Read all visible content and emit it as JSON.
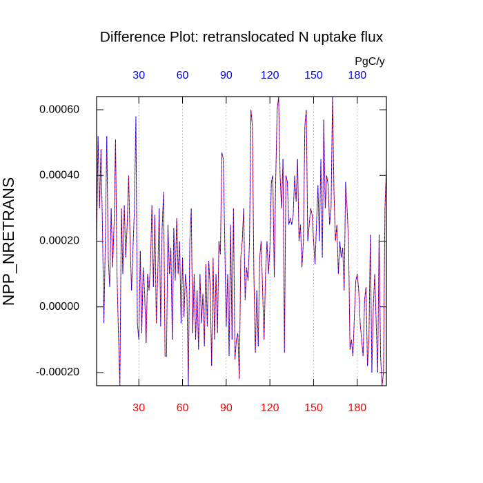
{
  "chart_data": {
    "type": "line",
    "title": "Difference Plot: retranslocated N uptake flux",
    "ylabel": "NPP_NRETRANS",
    "units": "PgC/y",
    "x": [
      1,
      2,
      3,
      4,
      5,
      6,
      7,
      8,
      9,
      10,
      11,
      12,
      13,
      14,
      15,
      16,
      17,
      18,
      19,
      20,
      21,
      22,
      23,
      24,
      25,
      26,
      27,
      28,
      29,
      30,
      31,
      32,
      33,
      34,
      35,
      36,
      37,
      38,
      39,
      40,
      41,
      42,
      43,
      44,
      45,
      46,
      47,
      48,
      49,
      50,
      51,
      52,
      53,
      54,
      55,
      56,
      57,
      58,
      59,
      60,
      61,
      62,
      63,
      64,
      65,
      66,
      67,
      68,
      69,
      70,
      71,
      72,
      73,
      74,
      75,
      76,
      77,
      78,
      79,
      80,
      81,
      82,
      83,
      84,
      85,
      86,
      87,
      88,
      89,
      90,
      91,
      92,
      93,
      94,
      95,
      96,
      97,
      98,
      99,
      100,
      101,
      102,
      103,
      104,
      105,
      106,
      107,
      108,
      109,
      110,
      111,
      112,
      113,
      114,
      115,
      116,
      117,
      118,
      119,
      120,
      121,
      122,
      123,
      124,
      125,
      126,
      127,
      128,
      129,
      130,
      131,
      132,
      133,
      134,
      135,
      136,
      137,
      138,
      139,
      140,
      141,
      142,
      143,
      144,
      145,
      146,
      147,
      148,
      149,
      150,
      151,
      152,
      153,
      154,
      155,
      156,
      157,
      158,
      159,
      160,
      161,
      162,
      163,
      164,
      165,
      166,
      167,
      168,
      169,
      170,
      171,
      172,
      173,
      174,
      175,
      176,
      177,
      178,
      179,
      180,
      181,
      182,
      183,
      184,
      185,
      186,
      187,
      188,
      189,
      190,
      191,
      192,
      193,
      194,
      195,
      196,
      197,
      198,
      199,
      200
    ],
    "series": [
      {
        "color": "#ff0000",
        "values": [
          0.0002,
          0.00052,
          0.0003,
          0.00048,
          0.00025,
          -5e-05,
          0.0002,
          0.00052,
          0.00015,
          6e-05,
          0.0003,
          0.00012,
          0.00025,
          0.00051,
          0.0001,
          -8e-05,
          -0.00024,
          0.0003,
          0.0001,
          0.00031,
          0.00015,
          0.00025,
          0.0004,
          0.0002,
          5e-05,
          0.00018,
          0.0003,
          0.00058,
          -5e-05,
          -0.0001,
          0.00017,
          -8e-05,
          0.00012,
          4e-05,
          -0.00011,
          0.0001,
          5e-05,
          0.00013,
          0.00031,
          6e-05,
          0.00028,
          -5e-05,
          0.0001,
          0.0003,
          -6e-05,
          0.00024,
          0.00035,
          -0.00015,
          -0.00015,
          0.00025,
          0.0001,
          0.00018,
          -0.0001,
          0.00024,
          8e-05,
          0.00027,
          0.0001,
          0.0002,
          -5e-05,
          0.00015,
          -3e-05,
          0.0001,
          5e-05,
          -0.00024,
          0.0002,
          0.0003,
          -8e-05,
          0.0001,
          -0.0001,
          5e-05,
          -0.00013,
          0.0001,
          -5e-05,
          4e-05,
          -0.00012,
          0.00013,
          -6e-05,
          0.00014,
          6e-05,
          -0.00018,
          0.00015,
          -0.0001,
          0.0001,
          -8e-05,
          0.0002,
          0.00016,
          0.00047,
          0.00045,
          0.0002,
          -6e-05,
          0.0001,
          -0.00015,
          0.00025,
          -0.0001,
          0.0003,
          -0.00016,
          -0.0001,
          -8e-05,
          -0.00022,
          0.00015,
          0.0002,
          0.0003,
          2e-05,
          0.00012,
          8e-05,
          0.0002,
          0.0006,
          0.00055,
          0.0001,
          -0.00014,
          5e-05,
          -0.00012,
          0.00015,
          0.0002,
          5e-05,
          -0.0001,
          0.0001,
          0.0002,
          0.0001,
          0.00018,
          0.00038,
          0.0004,
          9e-05,
          0.00039,
          0.0006,
          0.00064,
          0.0004,
          0.0003,
          0.00045,
          -0.00014,
          0.0004,
          0.00038,
          0.00025,
          0.00027,
          0.00025,
          0.00028,
          0.0004,
          0.00032,
          0.00045,
          0.0002,
          0.00025,
          0.00012,
          0.0002,
          0.00055,
          0.0006,
          0.0002,
          0.00025,
          0.0003,
          0.00028,
          0.0002,
          0.00013,
          0.00025,
          0.00037,
          0.0002,
          0.00045,
          0.00015,
          0.00057,
          0.0003,
          0.0004,
          0.00037,
          0.00025,
          0.0003,
          0.00064,
          0.00035,
          0.0002,
          0.00025,
          0.0001,
          0.0002,
          0.00015,
          0.00018,
          5e-05,
          0.00038,
          0.0003,
          0.0002,
          -0.00013,
          -0.0001,
          -0.00015,
          -3e-05,
          8e-05,
          0.0001,
          5e-05,
          -5e-05,
          -0.0001,
          -0.00015,
          2e-05,
          6e-05,
          -0.00018,
          -0.0001,
          0.00022,
          -0.0002,
          0,
          0.0001,
          -5e-05,
          -0.0002,
          0.00022,
          -0.00015,
          -0.00024,
          -0.0002,
          0.0003,
          0.00042
        ]
      },
      {
        "color": "#0000ff",
        "values": [
          0.0002,
          0.00052,
          0.0003,
          0.00048,
          0.00025,
          -5e-05,
          0.0002,
          0.00052,
          0.00015,
          6e-05,
          0.0003,
          0.00012,
          0.00025,
          0.00051,
          0.0001,
          -8e-05,
          -0.00024,
          0.0003,
          0.0001,
          0.00031,
          0.00015,
          0.00025,
          0.0004,
          0.0002,
          5e-05,
          0.00018,
          0.0003,
          0.00058,
          -5e-05,
          -0.0001,
          0.00017,
          -8e-05,
          0.00012,
          4e-05,
          -0.00011,
          0.0001,
          5e-05,
          0.00013,
          0.00031,
          6e-05,
          0.00028,
          -5e-05,
          0.0001,
          0.0003,
          -6e-05,
          0.00024,
          0.00035,
          -0.00015,
          -0.00015,
          0.00025,
          0.0001,
          0.00018,
          -0.0001,
          0.00024,
          8e-05,
          0.00027,
          0.0001,
          0.0002,
          -5e-05,
          0.00015,
          -3e-05,
          0.0001,
          5e-05,
          -0.00024,
          0.0002,
          0.0003,
          -8e-05,
          0.0001,
          -0.0001,
          5e-05,
          -0.00013,
          0.0001,
          -5e-05,
          4e-05,
          -0.00012,
          0.00013,
          -6e-05,
          0.00014,
          6e-05,
          -0.00018,
          0.00015,
          -0.0001,
          0.0001,
          -8e-05,
          0.0002,
          0.00016,
          0.00047,
          0.00045,
          0.0002,
          -6e-05,
          0.0001,
          -0.00015,
          0.00025,
          -0.0001,
          0.0003,
          -0.00016,
          -0.0001,
          -8e-05,
          -0.00022,
          0.00015,
          0.0002,
          0.0003,
          2e-05,
          0.00012,
          8e-05,
          0.0002,
          0.0006,
          0.00055,
          0.0001,
          -0.00014,
          5e-05,
          -0.00012,
          0.00015,
          0.0002,
          5e-05,
          -0.0001,
          0.0001,
          0.0002,
          0.0001,
          0.00018,
          0.00038,
          0.0004,
          9e-05,
          0.00039,
          0.0006,
          0.00064,
          0.0004,
          0.0003,
          0.00045,
          -0.00014,
          0.0004,
          0.00038,
          0.00025,
          0.00027,
          0.00025,
          0.00028,
          0.0004,
          0.00032,
          0.00045,
          0.0002,
          0.00025,
          0.00012,
          0.0002,
          0.00055,
          0.0006,
          0.0002,
          0.00025,
          0.0003,
          0.00028,
          0.0002,
          0.00013,
          0.00025,
          0.00037,
          0.0002,
          0.00045,
          0.00015,
          0.00057,
          0.0003,
          0.0004,
          0.00037,
          0.00025,
          0.0003,
          0.00064,
          0.00035,
          0.0002,
          0.00025,
          0.0001,
          0.0002,
          0.00015,
          0.00018,
          5e-05,
          0.00038,
          0.0003,
          0.0002,
          -0.00013,
          -0.0001,
          -0.00015,
          -3e-05,
          8e-05,
          0.0001,
          5e-05,
          -5e-05,
          -0.0001,
          -0.00015,
          2e-05,
          6e-05,
          -0.00018,
          -0.0001,
          0.00022,
          -0.0002,
          0,
          0.0001,
          -5e-05,
          -0.0002,
          0.00022,
          -0.00015,
          -0.00024,
          -0.0002,
          0.0003,
          0.00042
        ]
      }
    ],
    "xlim": [
      1,
      200
    ],
    "ylim": [
      -0.00024,
      0.00064
    ],
    "xticks": [
      30,
      60,
      90,
      120,
      150,
      180
    ],
    "yticks": [
      {
        "value": 0.0006,
        "label": "0.00060"
      },
      {
        "value": 0.0004,
        "label": "0.00040"
      },
      {
        "value": 0.0002,
        "label": "0.00020"
      },
      {
        "value": 0,
        "label": "0.00000"
      },
      {
        "value": -0.0002,
        "label": "-0.00020"
      }
    ],
    "xtick_color": "#ff0000",
    "top_xtick_color": "#0000ff",
    "grid": true,
    "dashed": true
  }
}
